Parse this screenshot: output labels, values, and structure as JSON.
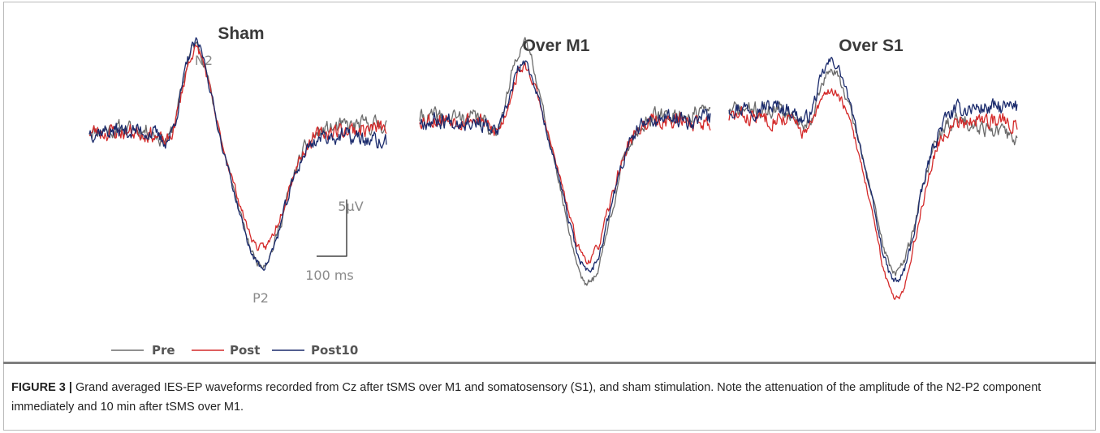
{
  "chart_data": [
    {
      "type": "line",
      "title": "Sham",
      "annotations": [
        "N2",
        "P2"
      ],
      "scale_bar": {
        "amplitude": "5μV",
        "time": "100 ms"
      },
      "series": [
        {
          "name": "Pre",
          "color": "#6b6b6b",
          "wave": {
            "base": -0.2,
            "n2": 7.6,
            "p2": -11.8,
            "end": 0.4,
            "seed": 11
          }
        },
        {
          "name": "Post",
          "color": "#d42a2a",
          "wave": {
            "base": -0.4,
            "n2": 7.4,
            "p2": -10.3,
            "end": 0.0,
            "seed": 23
          }
        },
        {
          "name": "Post10",
          "color": "#1a2a6c",
          "wave": {
            "base": -0.3,
            "n2": 7.8,
            "p2": -11.9,
            "end": -1.6,
            "seed": 37
          }
        }
      ]
    },
    {
      "type": "line",
      "title": "Over M1",
      "series": [
        {
          "name": "Pre",
          "color": "#6b6b6b",
          "wave": {
            "base": 0.2,
            "n2": 6.7,
            "p2": -14.6,
            "end": 0.7,
            "seed": 41
          }
        },
        {
          "name": "Post",
          "color": "#d42a2a",
          "wave": {
            "base": 0.1,
            "n2": 4.7,
            "p2": -12.4,
            "end": -0.3,
            "seed": 53
          }
        },
        {
          "name": "Post10",
          "color": "#1a2a6c",
          "wave": {
            "base": 0.0,
            "n2": 5.1,
            "p2": -13.2,
            "end": 0.2,
            "seed": 67
          }
        }
      ]
    },
    {
      "type": "line",
      "title": "Over S1",
      "series": [
        {
          "name": "Pre",
          "color": "#6b6b6b",
          "wave": {
            "base": 0.5,
            "n2": 3.6,
            "p2": -14.2,
            "end": -2.4,
            "seed": 71
          }
        },
        {
          "name": "Post",
          "color": "#d42a2a",
          "wave": {
            "base": -0.1,
            "n2": 2.6,
            "p2": -15.8,
            "end": -0.6,
            "seed": 83
          }
        },
        {
          "name": "Post10",
          "color": "#1a2a6c",
          "wave": {
            "base": 0.8,
            "n2": 4.2,
            "p2": -15.4,
            "end": 0.6,
            "seed": 97
          }
        }
      ]
    }
  ],
  "legend": [
    {
      "label": "Pre",
      "color": "#6b6b6b"
    },
    {
      "label": "Post",
      "color": "#d42a2a"
    },
    {
      "label": "Post10",
      "color": "#1a2a6c"
    }
  ],
  "caption": {
    "label": "FIGURE 3 |",
    "text": " Grand averaged IES-EP waveforms recorded from Cz after tSMS over M1 and somatosensory (S1), and sham stimulation. Note the attenuation of the amplitude of the N2-P2 component immediately and 10 min after tSMS over M1."
  }
}
